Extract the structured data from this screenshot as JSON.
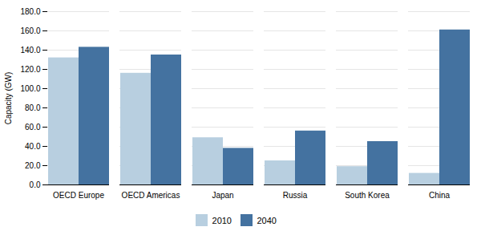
{
  "chart_data": {
    "type": "bar",
    "categories": [
      "OECD Europe",
      "OECD Americas",
      "Japan",
      "Russia",
      "South Korea",
      "China"
    ],
    "series": [
      {
        "name": "2010",
        "color": "#b8cfe0",
        "values": [
          132,
          116,
          49,
          25,
          19,
          12
        ]
      },
      {
        "name": "2040",
        "color": "#4472a0",
        "values": [
          143,
          135,
          38,
          56,
          45,
          161
        ]
      }
    ],
    "ylabel": "Capacity (GW)",
    "ylim": [
      0,
      180
    ],
    "yticks": [
      {
        "value": 0,
        "label": "0.0"
      },
      {
        "value": 20,
        "label": "20.0"
      },
      {
        "value": 40,
        "label": "40.0"
      },
      {
        "value": 60,
        "label": "60.0"
      },
      {
        "value": 80,
        "label": "80.0"
      },
      {
        "value": 100,
        "label": "100.0"
      },
      {
        "value": 120,
        "label": "120.0"
      },
      {
        "value": 140,
        "label": "140.0"
      },
      {
        "value": 160,
        "label": "160.0"
      },
      {
        "value": 180,
        "label": "180.0"
      }
    ],
    "grid": true,
    "legend": "bottom"
  }
}
